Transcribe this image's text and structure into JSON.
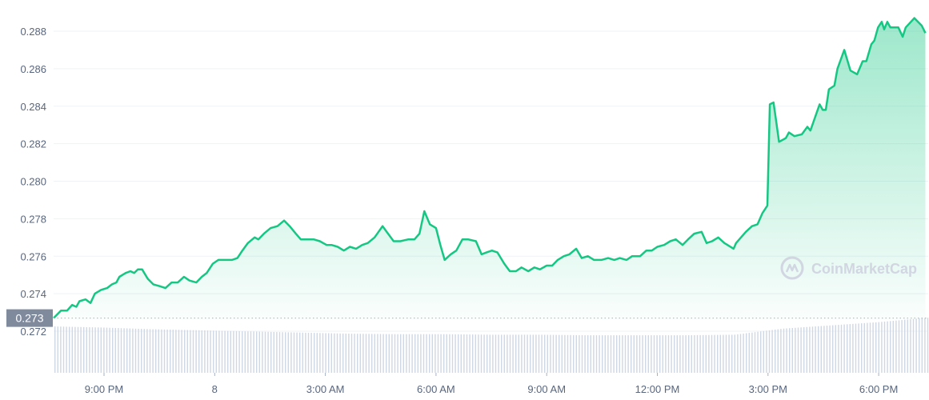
{
  "chart_data": {
    "type": "area",
    "title": "",
    "xlabel": "",
    "ylabel": "",
    "ylim": [
      0.2712,
      0.2893
    ],
    "grid": "horizontal",
    "line_color": "#16c784",
    "volume_color": "#cfd6e4",
    "y_ticks": [
      "0.272",
      "0.274",
      "0.276",
      "0.278",
      "0.280",
      "0.282",
      "0.284",
      "0.286",
      "0.288"
    ],
    "x_ticks": [
      {
        "time": "7 21:00",
        "label": "9:00 PM"
      },
      {
        "time": "8 00:00",
        "label": "8"
      },
      {
        "time": "8 03:00",
        "label": "3:00 AM"
      },
      {
        "time": "8 06:00",
        "label": "6:00 AM"
      },
      {
        "time": "8 09:00",
        "label": "9:00 AM"
      },
      {
        "time": "8 12:00",
        "label": "12:00 PM"
      },
      {
        "time": "8 15:00",
        "label": "3:00 PM"
      },
      {
        "time": "8 18:00",
        "label": "6:00 PM"
      }
    ],
    "current_price_label": "0.273",
    "current_price": 0.2727,
    "watermark": "CoinMarketCap",
    "series": [
      {
        "points": [
          [
            "7 19:38",
            0.2727
          ],
          [
            "7 19:50",
            0.2731
          ],
          [
            "7 20:00",
            0.2731
          ],
          [
            "7 20:08",
            0.2734
          ],
          [
            "7 20:15",
            0.2733
          ],
          [
            "7 20:20",
            0.2736
          ],
          [
            "7 20:30",
            0.2737
          ],
          [
            "7 20:38",
            0.2735
          ],
          [
            "7 20:45",
            0.274
          ],
          [
            "7 20:55",
            0.2742
          ],
          [
            "7 21:05",
            0.2743
          ],
          [
            "7 21:13",
            0.2745
          ],
          [
            "7 21:20",
            0.2746
          ],
          [
            "7 21:25",
            0.2749
          ],
          [
            "7 21:35",
            0.2751
          ],
          [
            "7 21:43",
            0.2752
          ],
          [
            "7 21:49",
            0.2751
          ],
          [
            "7 21:55",
            0.2753
          ],
          [
            "7 22:02",
            0.2753
          ],
          [
            "7 22:11",
            0.2748
          ],
          [
            "7 22:20",
            0.2745
          ],
          [
            "7 22:31",
            0.2744
          ],
          [
            "7 22:40",
            0.2743
          ],
          [
            "7 22:50",
            0.2746
          ],
          [
            "7 23:00",
            0.2746
          ],
          [
            "7 23:10",
            0.2749
          ],
          [
            "7 23:19",
            0.2747
          ],
          [
            "7 23:30",
            0.2746
          ],
          [
            "7 23:39",
            0.2749
          ],
          [
            "7 23:47",
            0.2751
          ],
          [
            "7 23:57",
            0.2756
          ],
          [
            "8 00:06",
            0.2758
          ],
          [
            "8 00:18",
            0.2758
          ],
          [
            "8 00:28",
            0.2758
          ],
          [
            "8 00:37",
            0.2759
          ],
          [
            "8 00:45",
            0.2763
          ],
          [
            "8 00:54",
            0.2767
          ],
          [
            "8 01:05",
            0.277
          ],
          [
            "8 01:11",
            0.2769
          ],
          [
            "8 01:20",
            0.2772
          ],
          [
            "8 01:31",
            0.2775
          ],
          [
            "8 01:42",
            0.2776
          ],
          [
            "8 01:53",
            0.2779
          ],
          [
            "8 02:02",
            0.2776
          ],
          [
            "8 02:12",
            0.2772
          ],
          [
            "8 02:20",
            0.2769
          ],
          [
            "8 02:29",
            0.2769
          ],
          [
            "8 02:41",
            0.2769
          ],
          [
            "8 02:51",
            0.2768
          ],
          [
            "8 03:02",
            0.2766
          ],
          [
            "8 03:10",
            0.2766
          ],
          [
            "8 03:20",
            0.2765
          ],
          [
            "8 03:30",
            0.2763
          ],
          [
            "8 03:40",
            0.2765
          ],
          [
            "8 03:50",
            0.2764
          ],
          [
            "8 04:00",
            0.2766
          ],
          [
            "8 04:09",
            0.2767
          ],
          [
            "8 04:20",
            0.277
          ],
          [
            "8 04:33",
            0.2776
          ],
          [
            "8 04:42",
            0.2772
          ],
          [
            "8 04:51",
            0.2768
          ],
          [
            "8 05:02",
            0.2768
          ],
          [
            "8 05:15",
            0.2769
          ],
          [
            "8 05:25",
            0.2769
          ],
          [
            "8 05:33",
            0.2772
          ],
          [
            "8 05:41",
            0.2784
          ],
          [
            "8 05:50",
            0.2777
          ],
          [
            "8 06:00",
            0.2775
          ],
          [
            "8 06:07",
            0.2766
          ],
          [
            "8 06:14",
            0.2758
          ],
          [
            "8 06:24",
            0.2761
          ],
          [
            "8 06:33",
            0.2763
          ],
          [
            "8 06:43",
            0.2769
          ],
          [
            "8 06:52",
            0.2769
          ],
          [
            "8 07:05",
            0.2768
          ],
          [
            "8 07:14",
            0.2761
          ],
          [
            "8 07:22",
            0.2762
          ],
          [
            "8 07:31",
            0.2763
          ],
          [
            "8 07:40",
            0.2762
          ],
          [
            "8 07:51",
            0.2756
          ],
          [
            "8 08:00",
            0.2752
          ],
          [
            "8 08:10",
            0.2752
          ],
          [
            "8 08:19",
            0.2754
          ],
          [
            "8 08:30",
            0.2752
          ],
          [
            "8 08:40",
            0.2754
          ],
          [
            "8 08:49",
            0.2753
          ],
          [
            "8 09:00",
            0.2755
          ],
          [
            "8 09:09",
            0.2755
          ],
          [
            "8 09:18",
            0.2758
          ],
          [
            "8 09:28",
            0.276
          ],
          [
            "8 09:37",
            0.2761
          ],
          [
            "8 09:48",
            0.2764
          ],
          [
            "8 09:57",
            0.2759
          ],
          [
            "8 10:07",
            0.276
          ],
          [
            "8 10:17",
            0.2758
          ],
          [
            "8 10:29",
            0.2758
          ],
          [
            "8 10:40",
            0.2759
          ],
          [
            "8 10:50",
            0.2758
          ],
          [
            "8 10:59",
            0.2759
          ],
          [
            "8 11:10",
            0.2758
          ],
          [
            "8 11:19",
            0.276
          ],
          [
            "8 11:32",
            0.276
          ],
          [
            "8 11:42",
            0.2763
          ],
          [
            "8 11:51",
            0.2763
          ],
          [
            "8 12:00",
            0.2765
          ],
          [
            "8 12:11",
            0.2766
          ],
          [
            "8 12:21",
            0.2768
          ],
          [
            "8 12:30",
            0.2769
          ],
          [
            "8 12:41",
            0.2766
          ],
          [
            "8 12:50",
            0.2769
          ],
          [
            "8 13:00",
            0.2772
          ],
          [
            "8 13:12",
            0.2773
          ],
          [
            "8 13:20",
            0.2767
          ],
          [
            "8 13:29",
            0.2768
          ],
          [
            "8 13:39",
            0.277
          ],
          [
            "8 13:49",
            0.2767
          ],
          [
            "8 14:04",
            0.2764
          ],
          [
            "8 14:08",
            0.2767
          ],
          [
            "8 14:24",
            0.2773
          ],
          [
            "8 14:34",
            0.2776
          ],
          [
            "8 14:43",
            0.2777
          ],
          [
            "8 14:51",
            0.2783
          ],
          [
            "8 14:59",
            0.2787
          ],
          [
            "8 15:03",
            0.2841
          ],
          [
            "8 15:09",
            0.2842
          ],
          [
            "8 15:18",
            0.2821
          ],
          [
            "8 15:29",
            0.2823
          ],
          [
            "8 15:34",
            0.2826
          ],
          [
            "8 15:43",
            0.2824
          ],
          [
            "8 15:55",
            0.2825
          ],
          [
            "8 16:04",
            0.2829
          ],
          [
            "8 16:09",
            0.2827
          ],
          [
            "8 16:24",
            0.2841
          ],
          [
            "8 16:29",
            0.2838
          ],
          [
            "8 16:34",
            0.2838
          ],
          [
            "8 16:39",
            0.2849
          ],
          [
            "8 16:48",
            0.2851
          ],
          [
            "8 16:53",
            0.286
          ],
          [
            "8 17:04",
            0.287
          ],
          [
            "8 17:14",
            0.2859
          ],
          [
            "8 17:25",
            0.2857
          ],
          [
            "8 17:34",
            0.2864
          ],
          [
            "8 17:40",
            0.2864
          ],
          [
            "8 17:48",
            0.2873
          ],
          [
            "8 17:53",
            0.2875
          ],
          [
            "8 17:59",
            0.2882
          ],
          [
            "8 18:05",
            0.2885
          ],
          [
            "8 18:09",
            0.2881
          ],
          [
            "8 18:14",
            0.2885
          ],
          [
            "8 18:19",
            0.2882
          ],
          [
            "8 18:32",
            0.2882
          ],
          [
            "8 18:39",
            0.2877
          ],
          [
            "8 18:44",
            0.2882
          ],
          [
            "8 18:58",
            0.2887
          ],
          [
            "8 19:10",
            0.2883
          ],
          [
            "8 19:16",
            0.2879
          ]
        ]
      }
    ],
    "volume_relative": [
      0.84,
      0.82,
      0.79,
      0.77,
      0.75,
      0.73,
      0.71,
      0.7,
      0.7,
      0.69,
      0.69,
      0.68,
      0.68,
      0.68,
      0.69,
      0.8,
      0.86,
      0.92,
      1.0
    ]
  }
}
